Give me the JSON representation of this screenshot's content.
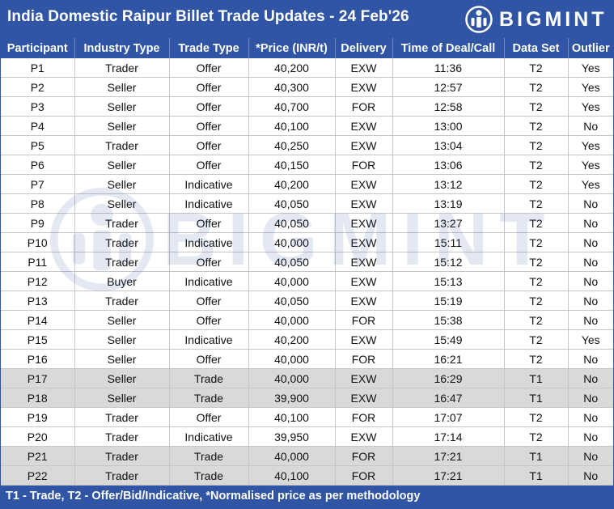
{
  "title": "India Domestic Raipur Billet Trade Updates - 24 Feb'26",
  "brand": "BIGMINT",
  "logo_icon": "bigmint-person-icon",
  "colors": {
    "header": "#2f55a4",
    "t1_row": "#d9d9d9"
  },
  "columns": [
    "Participant",
    "Industry Type",
    "Trade Type",
    "*Price (INR/t)",
    "Delivery",
    "Time of Deal/Call",
    "Data Set",
    "Outlier"
  ],
  "rows": [
    [
      "P1",
      "Trader",
      "Offer",
      "40,200",
      "EXW",
      "11:36",
      "T2",
      "Yes"
    ],
    [
      "P2",
      "Seller",
      "Offer",
      "40,300",
      "EXW",
      "12:57",
      "T2",
      "Yes"
    ],
    [
      "P3",
      "Seller",
      "Offer",
      "40,700",
      "FOR",
      "12:58",
      "T2",
      "Yes"
    ],
    [
      "P4",
      "Seller",
      "Offer",
      "40,100",
      "EXW",
      "13:00",
      "T2",
      "No"
    ],
    [
      "P5",
      "Trader",
      "Offer",
      "40,250",
      "EXW",
      "13:04",
      "T2",
      "Yes"
    ],
    [
      "P6",
      "Seller",
      "Offer",
      "40,150",
      "FOR",
      "13:06",
      "T2",
      "Yes"
    ],
    [
      "P7",
      "Seller",
      "Indicative",
      "40,200",
      "EXW",
      "13:12",
      "T2",
      "Yes"
    ],
    [
      "P8",
      "Seller",
      "Indicative",
      "40,050",
      "EXW",
      "13:19",
      "T2",
      "No"
    ],
    [
      "P9",
      "Trader",
      "Offer",
      "40,050",
      "EXW",
      "13:27",
      "T2",
      "No"
    ],
    [
      "P10",
      "Trader",
      "Indicative",
      "40,000",
      "EXW",
      "15:11",
      "T2",
      "No"
    ],
    [
      "P11",
      "Trader",
      "Offer",
      "40,050",
      "EXW",
      "15:12",
      "T2",
      "No"
    ],
    [
      "P12",
      "Buyer",
      "Indicative",
      "40,000",
      "EXW",
      "15:13",
      "T2",
      "No"
    ],
    [
      "P13",
      "Trader",
      "Offer",
      "40,050",
      "EXW",
      "15:19",
      "T2",
      "No"
    ],
    [
      "P14",
      "Seller",
      "Offer",
      "40,000",
      "FOR",
      "15:38",
      "T2",
      "No"
    ],
    [
      "P15",
      "Seller",
      "Indicative",
      "40,200",
      "EXW",
      "15:49",
      "T2",
      "Yes"
    ],
    [
      "P16",
      "Seller",
      "Offer",
      "40,000",
      "FOR",
      "16:21",
      "T2",
      "No"
    ],
    [
      "P17",
      "Seller",
      "Trade",
      "40,000",
      "EXW",
      "16:29",
      "T1",
      "No"
    ],
    [
      "P18",
      "Seller",
      "Trade",
      "39,900",
      "EXW",
      "16:47",
      "T1",
      "No"
    ],
    [
      "P19",
      "Trader",
      "Offer",
      "40,100",
      "FOR",
      "17:07",
      "T2",
      "No"
    ],
    [
      "P20",
      "Trader",
      "Indicative",
      "39,950",
      "EXW",
      "17:14",
      "T2",
      "No"
    ],
    [
      "P21",
      "Trader",
      "Trade",
      "40,000",
      "FOR",
      "17:21",
      "T1",
      "No"
    ],
    [
      "P22",
      "Trader",
      "Trade",
      "40,100",
      "FOR",
      "17:21",
      "T1",
      "No"
    ]
  ],
  "footer": "T1 - Trade, T2 - Offer/Bid/Indicative, *Normalised price as per methodology"
}
